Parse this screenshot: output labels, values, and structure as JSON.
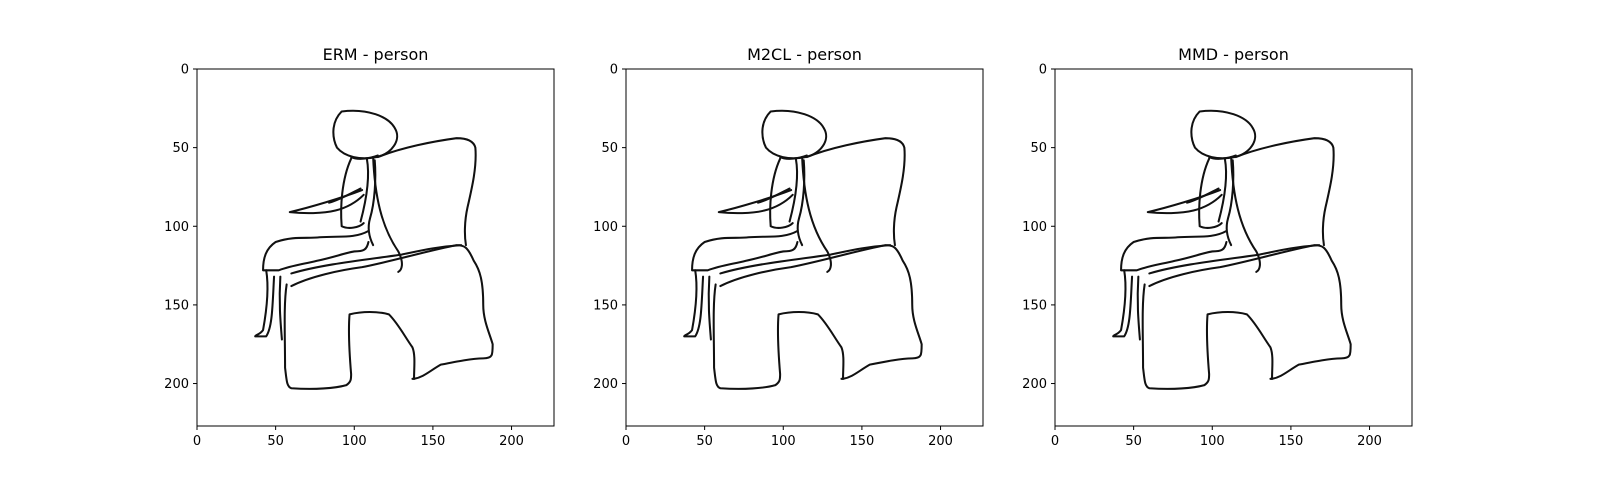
{
  "figure": {
    "panels": [
      {
        "title": "ERM - person"
      },
      {
        "title": "M2CL - person"
      },
      {
        "title": "MMD - person"
      }
    ],
    "x_ticks": [
      "0",
      "50",
      "100",
      "150",
      "200"
    ],
    "y_ticks": [
      "0",
      "50",
      "100",
      "150",
      "200"
    ],
    "image_size": [
      227,
      227
    ],
    "image_content": "line sketch of a person sitting in an armchair"
  }
}
